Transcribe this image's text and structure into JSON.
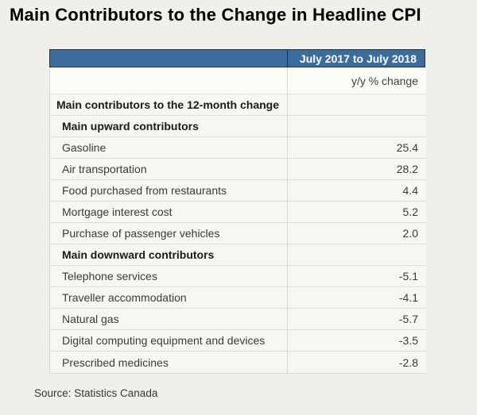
{
  "title": "Main Contributors to the Change in Headline CPI",
  "source_note": "Source: Statistics Canada",
  "colors": {
    "page_bg": "#f0efeb",
    "header_bg": "#3a6c9d",
    "header_text": "#ffffff",
    "header_border": "#26313c",
    "row_bg": "#f6f6f3",
    "row_divider": "#dcdcd8",
    "text": "#3a3a3a"
  },
  "table": {
    "column_header": "July 2017 to July 2018",
    "unit_label": "y/y % change",
    "rows": [
      {
        "label": "Main contributors to the 12-month change",
        "value": "",
        "style": "section1"
      },
      {
        "label": "Main upward contributors",
        "value": "",
        "style": "section2"
      },
      {
        "label": "Gasoline",
        "value": "25.4",
        "style": "item"
      },
      {
        "label": "Air transportation",
        "value": "28.2",
        "style": "item"
      },
      {
        "label": "Food purchased from restaurants",
        "value": "4.4",
        "style": "item"
      },
      {
        "label": "Mortgage interest cost",
        "value": "5.2",
        "style": "item"
      },
      {
        "label": "Purchase of passenger vehicles",
        "value": "2.0",
        "style": "item"
      },
      {
        "label": "Main downward contributors",
        "value": "",
        "style": "section2"
      },
      {
        "label": "Telephone services",
        "value": "-5.1",
        "style": "item"
      },
      {
        "label": "Traveller accommodation",
        "value": "-4.1",
        "style": "item"
      },
      {
        "label": "Natural gas",
        "value": "-5.7",
        "style": "item"
      },
      {
        "label": "Digital computing equipment and devices",
        "value": "-3.5",
        "style": "item"
      },
      {
        "label": "Prescribed medicines",
        "value": "-2.8",
        "style": "item"
      }
    ]
  },
  "chart_data": {
    "type": "table",
    "title": "Main Contributors to the Change in Headline CPI",
    "column_headers": [
      "July 2017 to July 2018"
    ],
    "unit": "y/y % change",
    "row_groups": [
      {
        "group": "Main contributors to the 12-month change",
        "subgroups": [
          {
            "group": "Main upward contributors",
            "rows": [
              {
                "label": "Gasoline",
                "value": 25.4
              },
              {
                "label": "Air transportation",
                "value": 28.2
              },
              {
                "label": "Food purchased from restaurants",
                "value": 4.4
              },
              {
                "label": "Mortgage interest cost",
                "value": 5.2
              },
              {
                "label": "Purchase of passenger vehicles",
                "value": 2.0
              }
            ]
          },
          {
            "group": "Main downward contributors",
            "rows": [
              {
                "label": "Telephone services",
                "value": -5.1
              },
              {
                "label": "Traveller accommodation",
                "value": -4.1
              },
              {
                "label": "Natural gas",
                "value": -5.7
              },
              {
                "label": "Digital computing equipment and devices",
                "value": -3.5
              },
              {
                "label": "Prescribed medicines",
                "value": -2.8
              }
            ]
          }
        ]
      }
    ],
    "source": "Statistics Canada"
  }
}
